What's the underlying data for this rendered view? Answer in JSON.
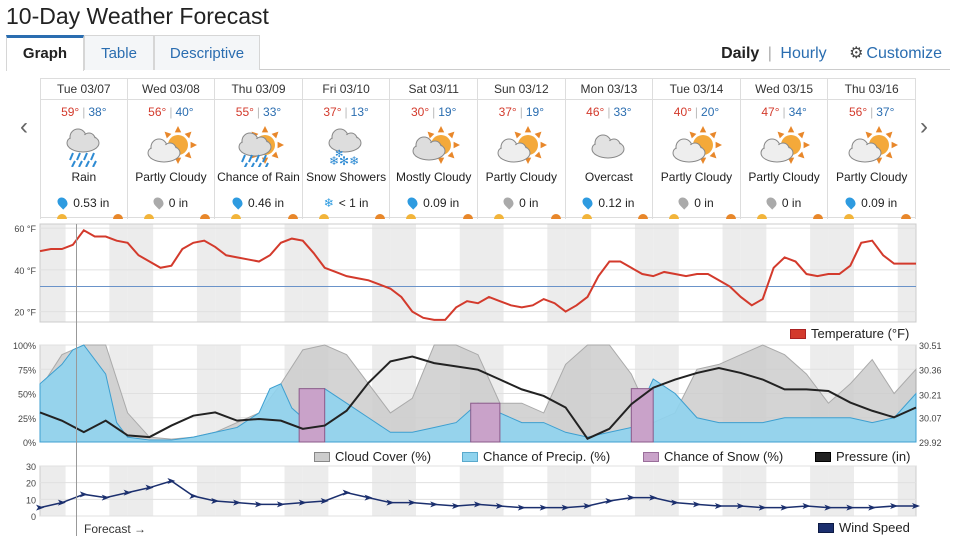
{
  "page": {
    "title": "10-Day Weather Forecast",
    "tabs": [
      {
        "label": "Graph"
      },
      {
        "label": "Table"
      },
      {
        "label": "Descriptive"
      }
    ],
    "links": {
      "daily": "Daily",
      "separator": "|",
      "hourly": "Hourly",
      "customize": "Customize"
    },
    "forecast_label": "Forecast →"
  },
  "days": [
    {
      "date": "Tue 03/07",
      "hi": "59°",
      "lo": "38°",
      "cond": "Rain",
      "precip": "0.53 in",
      "icon": "rain-icon",
      "drop": "rain"
    },
    {
      "date": "Wed 03/08",
      "hi": "56°",
      "lo": "40°",
      "cond": "Partly Cloudy",
      "precip": "0 in",
      "icon": "partly-cloudy-icon",
      "drop": "none"
    },
    {
      "date": "Thu 03/09",
      "hi": "55°",
      "lo": "33°",
      "cond": "Chance of Rain",
      "precip": "0.46 in",
      "icon": "chance-of-rain-icon",
      "drop": "rain"
    },
    {
      "date": "Fri 03/10",
      "hi": "37°",
      "lo": "13°",
      "cond": "Snow Showers",
      "precip": "< 1 in",
      "icon": "snow-showers-icon",
      "drop": "snow"
    },
    {
      "date": "Sat 03/11",
      "hi": "30°",
      "lo": "19°",
      "cond": "Mostly Cloudy",
      "precip": "0.09 in",
      "icon": "mostly-cloudy-icon",
      "drop": "rain"
    },
    {
      "date": "Sun 03/12",
      "hi": "37°",
      "lo": "19°",
      "cond": "Partly Cloudy",
      "precip": "0 in",
      "icon": "partly-cloudy-icon",
      "drop": "none"
    },
    {
      "date": "Mon 03/13",
      "hi": "46°",
      "lo": "33°",
      "cond": "Overcast",
      "precip": "0.12 in",
      "icon": "overcast-icon",
      "drop": "rain"
    },
    {
      "date": "Tue 03/14",
      "hi": "40°",
      "lo": "20°",
      "cond": "Partly Cloudy",
      "precip": "0 in",
      "icon": "partly-cloudy-icon",
      "drop": "none"
    },
    {
      "date": "Wed 03/15",
      "hi": "47°",
      "lo": "34°",
      "cond": "Partly Cloudy",
      "precip": "0 in",
      "icon": "partly-cloudy-icon",
      "drop": "none"
    },
    {
      "date": "Thu 03/16",
      "hi": "56°",
      "lo": "37°",
      "cond": "Partly Cloudy",
      "precip": "0.09 in",
      "icon": "partly-cloudy-icon",
      "drop": "rain"
    }
  ],
  "chart_data": [
    {
      "type": "line",
      "x_unit": "hours",
      "x_range": [
        0,
        240
      ],
      "ylim": [
        15,
        62
      ],
      "yticks": [
        "60 °F",
        "40 °F",
        "20 °F"
      ],
      "ytick_values": [
        60,
        40,
        20
      ],
      "freezing_line": 32,
      "series": [
        {
          "name": "Temperature (°F)",
          "color": "#d33a2c",
          "x": [
            0,
            3,
            6,
            9,
            12,
            15,
            18,
            21,
            24,
            27,
            30,
            33,
            36,
            39,
            42,
            45,
            48,
            51,
            54,
            57,
            60,
            63,
            66,
            69,
            72,
            75,
            78,
            81,
            84,
            87,
            90,
            93,
            96,
            99,
            102,
            105,
            108,
            111,
            114,
            117,
            120,
            123,
            126,
            129,
            132,
            135,
            138,
            141,
            144,
            147,
            150,
            153,
            156,
            159,
            162,
            165,
            168,
            171,
            174,
            177,
            180,
            183,
            186,
            189,
            192,
            195,
            198,
            201,
            204,
            207,
            210,
            213,
            216,
            219,
            222,
            225,
            228,
            231,
            234,
            237,
            240
          ],
          "y": [
            49,
            50,
            50,
            52,
            59,
            56,
            56,
            54,
            53,
            47,
            44,
            41,
            42,
            50,
            53,
            54,
            51,
            47,
            46,
            45,
            44,
            47,
            53,
            55,
            54,
            48,
            41,
            39,
            37,
            36,
            35,
            33,
            31,
            27,
            20,
            17,
            16,
            16,
            22,
            25,
            24,
            27,
            25,
            23,
            22,
            23,
            26,
            24,
            20,
            23,
            27,
            37,
            44,
            44,
            41,
            38,
            37,
            39,
            38,
            37,
            38,
            38,
            35,
            32,
            27,
            23,
            26,
            41,
            46,
            44,
            38,
            37,
            38,
            38,
            42,
            53,
            54,
            47,
            43,
            43,
            43
          ]
        }
      ]
    },
    {
      "type": "area",
      "x_unit": "hours",
      "x_range": [
        0,
        240
      ],
      "ylim": [
        0,
        100
      ],
      "yticks": [
        "100%",
        "75%",
        "50%",
        "25%",
        "0%"
      ],
      "ytick_values": [
        100,
        75,
        50,
        25,
        0
      ],
      "y2ticks": [
        "30.51",
        "30.36",
        "30.21",
        "30.07",
        "29.92"
      ],
      "y2_values": [
        30.51,
        30.36,
        30.21,
        30.07,
        29.92
      ],
      "series": [
        {
          "name": "Cloud Cover (%)",
          "color": "#cccccc",
          "x": [
            0,
            6,
            12,
            18,
            24,
            30,
            36,
            42,
            48,
            54,
            60,
            66,
            72,
            78,
            84,
            90,
            96,
            102,
            108,
            114,
            120,
            126,
            132,
            138,
            144,
            150,
            156,
            162,
            168,
            174,
            180,
            186,
            192,
            198,
            204,
            210,
            216,
            222,
            228,
            234,
            240
          ],
          "y": [
            55,
            90,
            100,
            100,
            30,
            5,
            3,
            5,
            10,
            20,
            30,
            60,
            95,
            100,
            90,
            60,
            30,
            45,
            100,
            100,
            90,
            40,
            40,
            30,
            80,
            100,
            100,
            70,
            20,
            30,
            75,
            80,
            90,
            100,
            90,
            70,
            40,
            60,
            85,
            50,
            75
          ]
        },
        {
          "name": "Chance of Precip. (%)",
          "color": "#8fd3ee",
          "x": [
            0,
            6,
            9,
            12,
            18,
            21,
            24,
            30,
            36,
            42,
            48,
            54,
            60,
            63,
            66,
            69,
            72,
            78,
            84,
            90,
            96,
            102,
            108,
            114,
            120,
            126,
            132,
            138,
            144,
            150,
            156,
            162,
            168,
            174,
            180,
            186,
            192,
            198,
            204,
            210,
            216,
            222,
            228,
            234,
            240
          ],
          "y": [
            60,
            80,
            95,
            100,
            70,
            20,
            5,
            2,
            2,
            5,
            10,
            15,
            30,
            55,
            60,
            35,
            25,
            55,
            40,
            25,
            10,
            10,
            15,
            20,
            40,
            30,
            20,
            20,
            10,
            5,
            10,
            15,
            65,
            50,
            25,
            20,
            20,
            20,
            25,
            25,
            25,
            25,
            20,
            25,
            50
          ]
        },
        {
          "name": "Chance of Snow (%)",
          "color": "#c9a2c9",
          "ranges": [
            {
              "from": 71,
              "to": 78,
              "value": 55
            },
            {
              "from": 118,
              "to": 126,
              "value": 40
            },
            {
              "from": 162,
              "to": 168,
              "value": 55
            }
          ]
        },
        {
          "name": "Pressure (in)",
          "color": "#222222",
          "x": [
            0,
            6,
            12,
            18,
            24,
            30,
            36,
            42,
            48,
            54,
            60,
            66,
            72,
            78,
            84,
            90,
            96,
            102,
            108,
            114,
            120,
            126,
            132,
            138,
            144,
            150,
            156,
            162,
            168,
            174,
            180,
            186,
            192,
            198,
            204,
            210,
            216,
            222,
            228,
            234,
            240
          ],
          "y": [
            30.1,
            30.05,
            29.98,
            30.05,
            29.96,
            29.95,
            30.02,
            30.08,
            30.1,
            30.05,
            30.06,
            30.05,
            30.0,
            30.02,
            30.11,
            30.28,
            30.41,
            30.44,
            30.4,
            30.38,
            30.36,
            30.3,
            30.24,
            30.2,
            30.13,
            29.94,
            30.0,
            30.15,
            30.25,
            30.3,
            30.34,
            30.37,
            30.34,
            30.3,
            30.24,
            30.24,
            30.23,
            30.16,
            30.11,
            30.07,
            30.13
          ]
        }
      ]
    },
    {
      "type": "line",
      "x_unit": "hours",
      "x_range": [
        0,
        240
      ],
      "ylim": [
        0,
        30
      ],
      "yticks": [
        "30",
        "20",
        "10",
        "0"
      ],
      "ytick_values": [
        30,
        20,
        10,
        0
      ],
      "series": [
        {
          "name": "Wind Speed",
          "color": "#1b2f6e",
          "x": [
            0,
            6,
            12,
            18,
            24,
            30,
            36,
            42,
            48,
            54,
            60,
            66,
            72,
            78,
            84,
            90,
            96,
            102,
            108,
            114,
            120,
            126,
            132,
            138,
            144,
            150,
            156,
            162,
            168,
            174,
            180,
            186,
            192,
            198,
            204,
            210,
            216,
            222,
            228,
            234,
            240
          ],
          "y": [
            5,
            8,
            13,
            11,
            14,
            17,
            21,
            12,
            9,
            8,
            7,
            7,
            8,
            9,
            14,
            11,
            8,
            8,
            7,
            6,
            7,
            6,
            5,
            5,
            5,
            6,
            9,
            11,
            11,
            8,
            7,
            6,
            6,
            5,
            5,
            6,
            5,
            5,
            5,
            6,
            6
          ]
        }
      ]
    }
  ]
}
